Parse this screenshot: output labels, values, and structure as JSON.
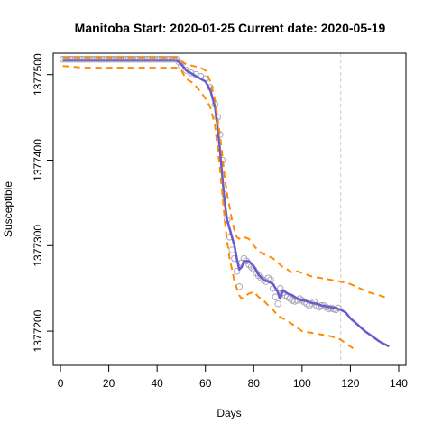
{
  "chart_data": {
    "type": "line",
    "title": "Manitoba Start:  2020-01-25   Current date:  2020-05-19",
    "xlabel": "Days",
    "ylabel": "Susceptible",
    "xlim": [
      -3,
      143
    ],
    "ylim": [
      1377160,
      1377525
    ],
    "x_ticks": [
      0,
      20,
      40,
      60,
      80,
      100,
      120,
      140
    ],
    "y_ticks": [
      1377200,
      1377300,
      1377400,
      1377500
    ],
    "current_day": 116,
    "colors": {
      "fit": "#6a5acd",
      "band": "#ff8c00",
      "observed": "#a9a9b8",
      "current_line": "#cccccc"
    },
    "series": [
      {
        "role": "observed",
        "style": "points",
        "x": [
          1,
          2,
          3,
          4,
          5,
          6,
          7,
          8,
          9,
          10,
          11,
          12,
          13,
          14,
          15,
          16,
          17,
          18,
          19,
          20,
          21,
          22,
          23,
          24,
          25,
          26,
          27,
          28,
          29,
          30,
          31,
          32,
          33,
          34,
          35,
          36,
          37,
          38,
          39,
          40,
          41,
          42,
          43,
          44,
          45,
          46,
          47,
          48,
          49,
          50,
          52,
          54,
          56,
          58,
          60,
          62,
          64,
          65,
          66,
          67,
          68,
          69,
          70,
          71,
          72,
          73,
          74,
          75,
          76,
          77,
          78,
          79,
          80,
          81,
          82,
          83,
          84,
          85,
          86,
          87,
          88,
          89,
          90,
          91,
          92,
          93,
          94,
          95,
          96,
          97,
          98,
          99,
          100,
          101,
          102,
          103,
          104,
          105,
          106,
          107,
          108,
          109,
          110,
          111,
          112,
          113,
          114,
          115
        ],
        "y": [
          1377518,
          1377518,
          1377518,
          1377518,
          1377518,
          1377518,
          1377518,
          1377518,
          1377518,
          1377518,
          1377518,
          1377518,
          1377518,
          1377518,
          1377518,
          1377518,
          1377518,
          1377518,
          1377518,
          1377518,
          1377518,
          1377518,
          1377518,
          1377518,
          1377518,
          1377518,
          1377518,
          1377518,
          1377518,
          1377518,
          1377518,
          1377518,
          1377518,
          1377518,
          1377518,
          1377518,
          1377518,
          1377518,
          1377518,
          1377518,
          1377518,
          1377518,
          1377518,
          1377518,
          1377518,
          1377518,
          1377518,
          1377518,
          1377515,
          1377510,
          1377505,
          1377502,
          1377500,
          1377498,
          1377495,
          1377485,
          1377465,
          1377450,
          1377430,
          1377400,
          1377360,
          1377330,
          1377310,
          1377295,
          1377285,
          1377270,
          1377252,
          1377280,
          1377285,
          1377282,
          1377278,
          1377275,
          1377272,
          1377268,
          1377265,
          1377262,
          1377260,
          1377258,
          1377262,
          1377260,
          1377250,
          1377240,
          1377232,
          1377250,
          1377245,
          1377242,
          1377240,
          1377238,
          1377236,
          1377235,
          1377236,
          1377238,
          1377236,
          1377234,
          1377232,
          1377230,
          1377232,
          1377234,
          1377230,
          1377228,
          1377230,
          1377230,
          1377228,
          1377226,
          1377227,
          1377226,
          1377225,
          1377227
        ]
      },
      {
        "role": "fit",
        "style": "solid",
        "x": [
          1,
          10,
          20,
          30,
          40,
          48,
          50,
          52,
          55,
          58,
          60,
          62,
          64,
          65,
          66,
          67,
          68,
          69,
          70,
          71,
          72,
          73,
          74,
          75,
          76,
          78,
          80,
          82,
          84,
          86,
          88,
          90,
          91,
          92,
          94,
          96,
          98,
          100,
          102,
          104,
          106,
          108,
          110,
          112,
          114,
          116,
          118,
          120,
          122,
          124,
          126,
          128,
          130,
          132,
          134,
          136
        ],
        "y": [
          1377517,
          1377517,
          1377517,
          1377517,
          1377517,
          1377517,
          1377512,
          1377505,
          1377500,
          1377495,
          1377492,
          1377482,
          1377462,
          1377440,
          1377412,
          1377380,
          1377350,
          1377330,
          1377320,
          1377310,
          1377300,
          1377285,
          1377272,
          1377275,
          1377282,
          1377282,
          1377276,
          1377266,
          1377260,
          1377258,
          1377255,
          1377245,
          1377238,
          1377248,
          1377244,
          1377242,
          1377238,
          1377236,
          1377235,
          1377233,
          1377232,
          1377230,
          1377229,
          1377228,
          1377227,
          1377225,
          1377222,
          1377215,
          1377210,
          1377205,
          1377200,
          1377196,
          1377192,
          1377188,
          1377185,
          1377182
        ]
      },
      {
        "role": "upper-band",
        "style": "dashed",
        "x": [
          1,
          10,
          20,
          30,
          40,
          48,
          50,
          52,
          55,
          58,
          60,
          62,
          64,
          65,
          66,
          67,
          68,
          69,
          70,
          71,
          72,
          73,
          74,
          75,
          76,
          78,
          80,
          82,
          84,
          86,
          88,
          90,
          92,
          94,
          96,
          98,
          100,
          104,
          108,
          112,
          116,
          120,
          124,
          128,
          132,
          136
        ],
        "y": [
          1377520,
          1377520,
          1377520,
          1377520,
          1377520,
          1377520,
          1377516,
          1377512,
          1377510,
          1377508,
          1377505,
          1377492,
          1377470,
          1377450,
          1377430,
          1377405,
          1377380,
          1377360,
          1377345,
          1377330,
          1377318,
          1377310,
          1377308,
          1377310,
          1377310,
          1377308,
          1377300,
          1377294,
          1377290,
          1377288,
          1377285,
          1377280,
          1377275,
          1377272,
          1377268,
          1377270,
          1377268,
          1377264,
          1377262,
          1377260,
          1377258,
          1377255,
          1377250,
          1377245,
          1377242,
          1377238
        ]
      },
      {
        "role": "lower-band",
        "style": "dashed",
        "x": [
          1,
          10,
          20,
          30,
          40,
          48,
          50,
          52,
          55,
          58,
          60,
          62,
          64,
          65,
          66,
          67,
          68,
          69,
          70,
          71,
          72,
          73,
          74,
          75,
          76,
          78,
          80,
          82,
          84,
          86,
          88,
          90,
          92,
          94,
          96,
          98,
          100,
          104,
          108,
          112,
          116,
          118,
          120,
          122
        ],
        "y": [
          1377510,
          1377508,
          1377508,
          1377508,
          1377508,
          1377508,
          1377505,
          1377495,
          1377490,
          1377480,
          1377472,
          1377462,
          1377440,
          1377415,
          1377390,
          1377360,
          1377330,
          1377305,
          1377285,
          1377272,
          1377258,
          1377250,
          1377242,
          1377238,
          1377240,
          1377244,
          1377246,
          1377240,
          1377236,
          1377230,
          1377225,
          1377218,
          1377215,
          1377212,
          1377208,
          1377204,
          1377200,
          1377198,
          1377196,
          1377194,
          1377190,
          1377186,
          1377182,
          1377178
        ]
      }
    ]
  }
}
